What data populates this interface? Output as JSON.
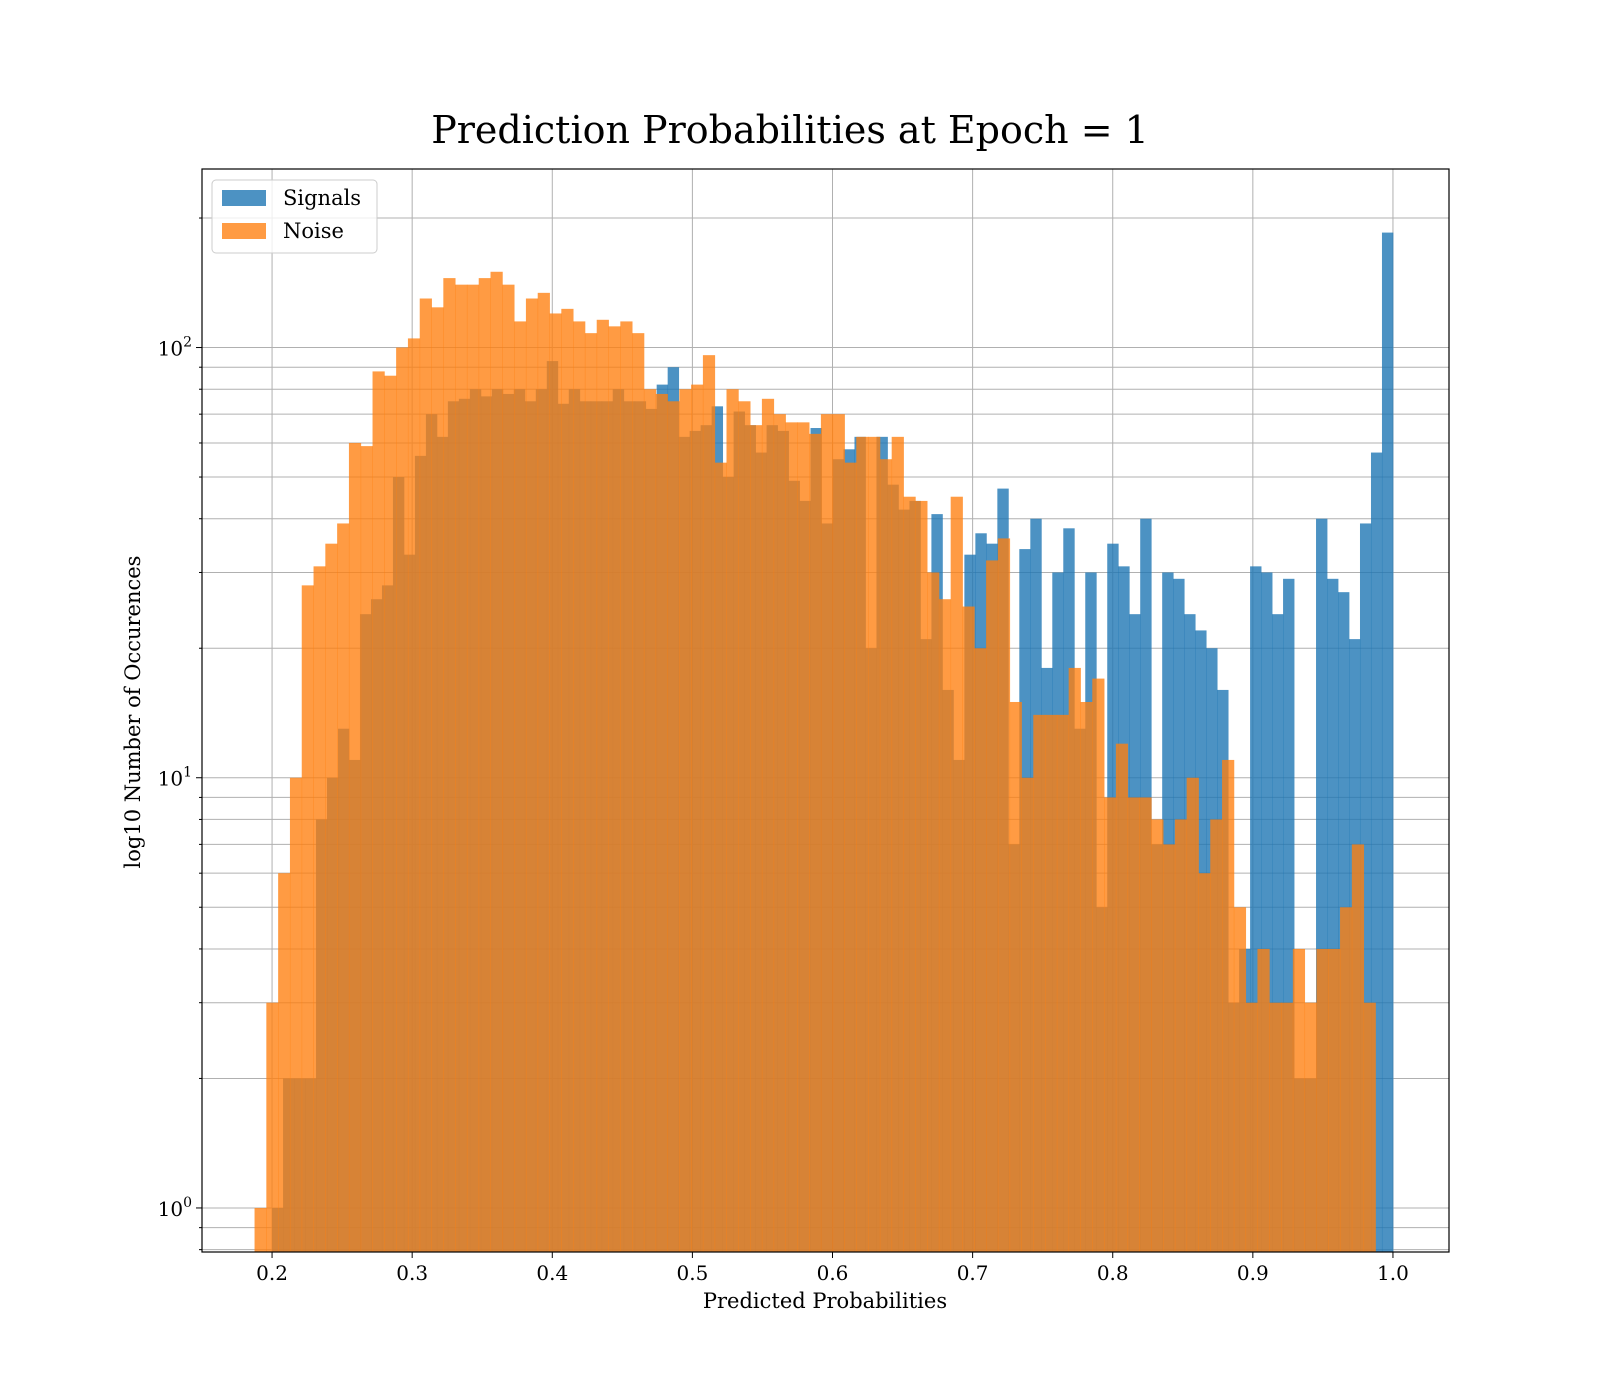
{
  "chart_data": {
    "type": "bar",
    "title": "Prediction Probabilities at Epoch = 1",
    "xlabel": "Predicted Probabilities",
    "ylabel": "log10 Number of Occurences",
    "xlim": [
      0.15,
      1.04
    ],
    "ylim": [
      0.79,
      260
    ],
    "yscale": "log",
    "grid": true,
    "legend_position": "top-left",
    "xticks": [
      "0.2",
      "0.3",
      "0.4",
      "0.5",
      "0.6",
      "0.7",
      "0.8",
      "0.9",
      "1.0"
    ],
    "yticks": [
      {
        "value": 1,
        "base": "10",
        "exp": "0"
      },
      {
        "value": 10,
        "base": "10",
        "exp": "1"
      },
      {
        "value": 100,
        "base": "10",
        "exp": "2"
      }
    ],
    "series": [
      {
        "name": "Signals",
        "color": "#1f77b4",
        "opacity": 0.8,
        "bin_start": 0.2,
        "bin_end": 1.0,
        "counts": [
          1,
          2,
          2,
          2,
          8,
          10,
          13,
          11,
          24,
          26,
          28,
          50,
          33,
          56,
          70,
          62,
          75,
          76,
          80,
          77,
          80,
          78,
          80,
          75,
          80,
          93,
          74,
          80,
          75,
          75,
          75,
          80,
          75,
          75,
          72,
          82,
          90,
          62,
          64,
          66,
          73,
          50,
          71,
          66,
          57,
          66,
          64,
          49,
          44,
          65,
          39,
          55,
          58,
          62,
          20,
          62,
          48,
          42,
          44,
          21,
          41,
          16,
          11,
          33,
          37,
          35,
          47,
          7,
          34,
          40,
          18,
          30,
          38,
          13,
          30,
          5,
          35,
          31,
          24,
          40,
          7,
          30,
          29,
          24,
          22,
          20,
          16,
          3,
          4,
          31,
          30,
          24,
          29,
          2,
          2,
          40,
          29,
          27,
          21,
          39,
          57,
          185
        ],
        "left_offset": 0.0625,
        "bin_width": 0.008
      },
      {
        "name": "Noise",
        "color": "#ff7f0e",
        "opacity": 0.78,
        "bin_start": 0.1875,
        "bin_end": 0.9875,
        "counts": [
          1,
          3,
          6,
          10,
          28,
          31,
          35,
          39,
          60,
          59,
          88,
          86,
          100,
          105,
          130,
          124,
          145,
          140,
          140,
          145,
          150,
          140,
          115,
          130,
          134,
          120,
          123,
          115,
          108,
          116,
          112,
          115,
          108,
          80,
          78,
          75,
          80,
          82,
          96,
          54,
          80,
          75,
          66,
          76,
          70,
          67,
          67,
          63,
          70,
          70,
          54,
          62,
          62,
          55,
          62,
          45,
          44,
          30,
          26,
          45,
          25,
          20,
          32,
          36,
          15,
          10,
          14,
          14,
          14,
          18,
          15,
          17,
          9,
          12,
          9,
          9,
          8,
          7,
          8,
          10,
          6,
          8,
          11,
          5,
          3,
          4,
          3,
          3,
          4,
          3,
          4,
          4,
          5,
          7,
          3
        ],
        "bin_width": 0.008421
      }
    ]
  }
}
